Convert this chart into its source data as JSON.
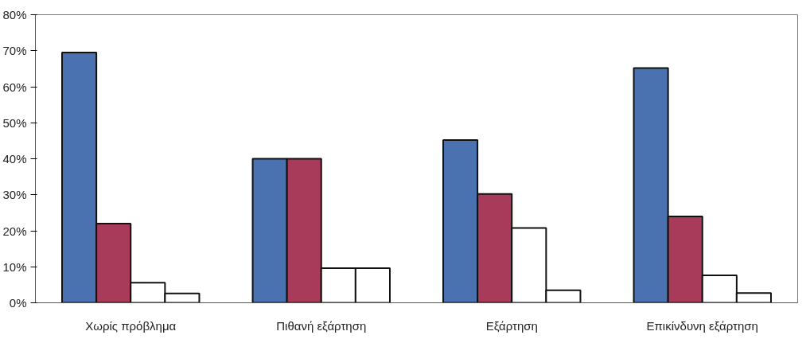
{
  "chart_data": {
    "type": "bar",
    "categories": [
      "Χωρίς πρόβλημα",
      "Πιθανή εξάρτηση",
      "Εξάρτηση",
      "Επικίνδυνη εξάρτηση"
    ],
    "series": [
      {
        "color": "#4a72b0",
        "values": [
          69.5,
          40,
          45.2,
          65.2
        ]
      },
      {
        "color": "#a83a5a",
        "values": [
          22,
          40,
          30.2,
          24
        ]
      },
      {
        "color": "#ffffff",
        "values": [
          5.6,
          9.6,
          20.8,
          7.6
        ]
      },
      {
        "color": "#ffffff",
        "values": [
          2.6,
          9.6,
          3.5,
          2.7
        ]
      }
    ],
    "ylim": [
      0,
      80
    ],
    "yticks": [
      {
        "value": 0,
        "label": "0%"
      },
      {
        "value": 10,
        "label": "10%"
      },
      {
        "value": 20,
        "label": "20%"
      },
      {
        "value": 30,
        "label": "30%"
      },
      {
        "value": 40,
        "label": "40%"
      },
      {
        "value": 50,
        "label": "50%"
      },
      {
        "value": 60,
        "label": "60%"
      },
      {
        "value": 70,
        "label": "70%"
      },
      {
        "value": 80,
        "label": "80%"
      }
    ],
    "grid": false
  }
}
